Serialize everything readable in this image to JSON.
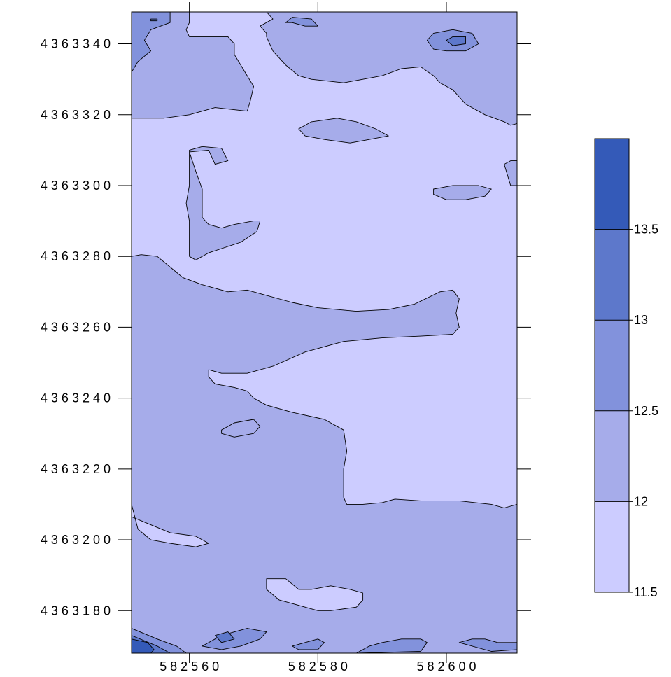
{
  "chart_data": {
    "type": "contour",
    "title": "",
    "xlabel": "",
    "ylabel": "",
    "x_ticks": [
      {
        "value": 582560,
        "label": "5 8 2 5 6 0"
      },
      {
        "value": 582580,
        "label": "5 8 2 5 8 0"
      },
      {
        "value": 582600,
        "label": "5 8 2 6 0 0"
      }
    ],
    "y_ticks": [
      {
        "value": 4363180,
        "label": "4 3 6 3 1 8 0"
      },
      {
        "value": 4363200,
        "label": "4 3 6 3 2 0 0"
      },
      {
        "value": 4363220,
        "label": "4 3 6 3 2 2 0"
      },
      {
        "value": 4363240,
        "label": "4 3 6 3 2 4 0"
      },
      {
        "value": 4363260,
        "label": "4 3 6 3 2 6 0"
      },
      {
        "value": 4363280,
        "label": "4 3 6 3 2 8 0"
      },
      {
        "value": 4363300,
        "label": "4 3 6 3 3 0 0"
      },
      {
        "value": 4363320,
        "label": "4 3 6 3 3 2 0"
      },
      {
        "value": 4363340,
        "label": "4 3 6 3 3 4 0"
      }
    ],
    "xlim": [
      582551,
      582611
    ],
    "ylim": [
      4363168,
      4363349
    ],
    "levels": [
      {
        "range": [
          11.5,
          12.0
        ],
        "color": "#ccccff"
      },
      {
        "range": [
          12.0,
          12.5
        ],
        "color": "#a6acea"
      },
      {
        "range": [
          12.5,
          13.0
        ],
        "color": "#8292dc"
      },
      {
        "range": [
          13.0,
          13.5
        ],
        "color": "#5d78cb"
      },
      {
        "range": [
          13.5,
          14.0
        ],
        "color": "#345ab8"
      }
    ],
    "legend_labels": [
      "11.5",
      "12",
      "12.5",
      "13",
      "13.5"
    ],
    "legend_position": "right",
    "regions": [
      {
        "level": 1,
        "pts": [
          [
            582551,
            4363280
          ],
          [
            582552.5,
            4363280.5
          ],
          [
            582555,
            4363280
          ],
          [
            582557,
            4363277
          ],
          [
            582559,
            4363274
          ],
          [
            582562,
            4363272
          ],
          [
            582566,
            4363270
          ],
          [
            582569,
            4363270.5
          ],
          [
            582572,
            4363269
          ],
          [
            582576,
            4363267
          ],
          [
            582580,
            4363265.5
          ],
          [
            582586,
            4363264.5
          ],
          [
            582591,
            4363265
          ],
          [
            582595,
            4363266.5
          ],
          [
            582599,
            4363270
          ],
          [
            582601,
            4363270.5
          ],
          [
            582602,
            4363268
          ],
          [
            582601.5,
            4363264
          ],
          [
            582602,
            4363260
          ],
          [
            582601,
            4363258
          ],
          [
            582596,
            4363257.5
          ],
          [
            582590,
            4363257
          ],
          [
            582584,
            4363256
          ],
          [
            582578,
            4363253
          ],
          [
            582573,
            4363249
          ],
          [
            582569,
            4363247
          ],
          [
            582565,
            4363247
          ],
          [
            582563,
            4363248
          ],
          [
            582563,
            4363246
          ],
          [
            582564,
            4363244
          ],
          [
            582567,
            4363243
          ],
          [
            582569,
            4363242
          ],
          [
            582570,
            4363240
          ],
          [
            582572,
            4363238
          ],
          [
            582576,
            4363236
          ],
          [
            582581,
            4363234
          ],
          [
            582584,
            4363231
          ],
          [
            582584.5,
            4363225
          ],
          [
            582584,
            4363220
          ],
          [
            582584,
            4363212
          ],
          [
            582584.5,
            4363210
          ],
          [
            582587,
            4363210
          ],
          [
            582590,
            4363210.5
          ],
          [
            582592,
            4363211.5
          ],
          [
            582596,
            4363211
          ],
          [
            582602,
            4363211
          ],
          [
            582607,
            4363210
          ],
          [
            582609,
            4363209
          ],
          [
            582611,
            4363210
          ],
          [
            582611,
            4363168
          ],
          [
            582551,
            4363168
          ]
        ]
      },
      {
        "level": 1,
        "pts": [
          [
            582551,
            4363349
          ],
          [
            582560,
            4363349
          ],
          [
            582560,
            4363346
          ],
          [
            582559.5,
            4363344
          ],
          [
            582560,
            4363342
          ],
          [
            582564,
            4363342
          ],
          [
            582566,
            4363342
          ],
          [
            582567,
            4363340
          ],
          [
            582567,
            4363337
          ],
          [
            582568,
            4363334
          ],
          [
            582569,
            4363331
          ],
          [
            582570,
            4363328
          ],
          [
            582569.5,
            4363324
          ],
          [
            582569,
            4363321
          ],
          [
            582564,
            4363322
          ],
          [
            582560,
            4363320
          ],
          [
            582556,
            4363319
          ],
          [
            582551,
            4363319
          ]
        ]
      },
      {
        "level": 1,
        "pts": [
          [
            582572,
            4363349
          ],
          [
            582573,
            4363347
          ],
          [
            582571,
            4363345
          ],
          [
            582572,
            4363343
          ],
          [
            582572,
            4363342
          ],
          [
            582573,
            4363338
          ],
          [
            582575,
            4363334
          ],
          [
            582577,
            4363331
          ],
          [
            582579,
            4363330
          ],
          [
            582584,
            4363329
          ],
          [
            582587,
            4363330
          ],
          [
            582590,
            4363331
          ],
          [
            582593,
            4363333
          ],
          [
            582596,
            4363333.5
          ],
          [
            582598,
            4363331
          ],
          [
            582599,
            4363329
          ],
          [
            582601,
            4363327
          ],
          [
            582603,
            4363323
          ],
          [
            582606,
            4363320
          ],
          [
            582609,
            4363318
          ],
          [
            582610,
            4363317
          ],
          [
            582611,
            4363317.5
          ],
          [
            582611,
            4363349
          ]
        ]
      },
      {
        "level": 1,
        "pts": [
          [
            582563,
            4363310
          ],
          [
            582560,
            4363309.5
          ],
          [
            582561,
            4363304
          ],
          [
            582562,
            4363299
          ],
          [
            582562,
            4363295
          ],
          [
            582562,
            4363291
          ],
          [
            582563,
            4363289
          ],
          [
            582565,
            4363288
          ],
          [
            582567,
            4363289
          ],
          [
            582570,
            4363290
          ],
          [
            582571,
            4363290
          ],
          [
            582570.5,
            4363287
          ],
          [
            582568,
            4363284
          ],
          [
            582563,
            4363281
          ],
          [
            582561,
            4363279
          ],
          [
            582560,
            4363280
          ],
          [
            582560,
            4363285
          ],
          [
            582560,
            4363290
          ],
          [
            582559.5,
            4363295
          ],
          [
            582560,
            4363300
          ],
          [
            582560,
            4363305
          ],
          [
            582560,
            4363310
          ],
          [
            582562,
            4363311
          ],
          [
            582565,
            4363310.5
          ],
          [
            582566,
            4363307
          ],
          [
            582564,
            4363306
          ]
        ]
      },
      {
        "level": 1,
        "pts": [
          [
            582577,
            4363316
          ],
          [
            582579,
            4363318
          ],
          [
            582583,
            4363319
          ],
          [
            582586,
            4363318
          ],
          [
            582589,
            4363316
          ],
          [
            582591,
            4363314
          ],
          [
            582588,
            4363313
          ],
          [
            582585,
            4363312
          ],
          [
            582581,
            4363313
          ],
          [
            582578,
            4363314
          ]
        ]
      },
      {
        "level": 1,
        "pts": [
          [
            582598,
            4363299
          ],
          [
            582601,
            4363300
          ],
          [
            582605,
            4363300
          ],
          [
            582607,
            4363299
          ],
          [
            582606,
            4363297
          ],
          [
            582603,
            4363296
          ],
          [
            582600,
            4363296
          ],
          [
            582598,
            4363297.5
          ]
        ]
      },
      {
        "level": 1,
        "pts": [
          [
            582609,
            4363306
          ],
          [
            582610,
            4363307
          ],
          [
            582611,
            4363307
          ],
          [
            582611,
            4363300
          ],
          [
            582610,
            4363300
          ],
          [
            582609.5,
            4363303
          ]
        ]
      },
      {
        "level": 1,
        "pts": [
          [
            582565,
            4363231
          ],
          [
            582567,
            4363233
          ],
          [
            582570,
            4363234
          ],
          [
            582571,
            4363232
          ],
          [
            582570,
            4363230
          ],
          [
            582567,
            4363229
          ],
          [
            582565,
            4363230
          ]
        ]
      },
      {
        "level": 0,
        "pts": [
          [
            582551,
            4363210
          ],
          [
            582552,
            4363203
          ],
          [
            582554,
            4363200
          ],
          [
            582557,
            4363199
          ],
          [
            582561,
            4363198
          ],
          [
            582563,
            4363199
          ],
          [
            582561,
            4363201
          ],
          [
            582557,
            4363202
          ],
          [
            582553,
            4363205
          ],
          [
            582551,
            4363206.5
          ]
        ]
      },
      {
        "level": 0,
        "pts": [
          [
            582572,
            4363189
          ],
          [
            582572,
            4363186
          ],
          [
            582574,
            4363183
          ],
          [
            582576,
            4363182
          ],
          [
            582578,
            4363181
          ],
          [
            582580,
            4363180
          ],
          [
            582582,
            4363180
          ],
          [
            582586,
            4363181
          ],
          [
            582587,
            4363183
          ],
          [
            582587,
            4363185
          ],
          [
            582585,
            4363186
          ],
          [
            582582,
            4363187
          ],
          [
            582579,
            4363186
          ],
          [
            582577,
            4363186
          ],
          [
            582575,
            4363189
          ]
        ]
      },
      {
        "level": 2,
        "pts": [
          [
            582551,
            4363349
          ],
          [
            582557,
            4363349
          ],
          [
            582557,
            4363346
          ],
          [
            582554,
            4363344
          ],
          [
            582553,
            4363341
          ],
          [
            582554,
            4363338
          ],
          [
            582552,
            4363335
          ],
          [
            582551,
            4363332
          ]
        ]
      },
      {
        "level": 2,
        "pts": [
          [
            582575,
            4363346
          ],
          [
            582576,
            4363346
          ],
          [
            582578,
            4363345
          ],
          [
            582580,
            4363345
          ],
          [
            582579,
            4363347
          ],
          [
            582576,
            4363347.5
          ]
        ]
      },
      {
        "level": 2,
        "pts": [
          [
            582597,
            4363341
          ],
          [
            582598,
            4363343
          ],
          [
            582601,
            4363344
          ],
          [
            582604,
            4363343
          ],
          [
            582605,
            4363340
          ],
          [
            582603,
            4363338
          ],
          [
            582600,
            4363338
          ],
          [
            582598,
            4363338.5
          ]
        ]
      },
      {
        "level": 2,
        "pts": [
          [
            582551,
            4363175
          ],
          [
            582555,
            4363172
          ],
          [
            582558,
            4363170
          ],
          [
            582559.5,
            4363168
          ],
          [
            582551,
            4363168
          ]
        ]
      },
      {
        "level": 2,
        "pts": [
          [
            582562,
            4363170
          ],
          [
            582565,
            4363173
          ],
          [
            582569,
            4363175
          ],
          [
            582572,
            4363174
          ],
          [
            582571,
            4363172
          ],
          [
            582568,
            4363170
          ],
          [
            582565,
            4363169
          ]
        ]
      },
      {
        "level": 2,
        "pts": [
          [
            582586,
            4363168
          ],
          [
            582588,
            4363170
          ],
          [
            582590,
            4363171
          ],
          [
            582593,
            4363172
          ],
          [
            582596,
            4363172
          ],
          [
            582597,
            4363171
          ],
          [
            582596,
            4363168.5
          ]
        ]
      },
      {
        "level": 2,
        "pts": [
          [
            582602,
            4363171
          ],
          [
            582604,
            4363172
          ],
          [
            582606,
            4363172
          ],
          [
            582608,
            4363171
          ],
          [
            582611,
            4363171
          ],
          [
            582611,
            4363169
          ],
          [
            582607,
            4363168.5
          ]
        ]
      },
      {
        "level": 2,
        "pts": [
          [
            582576,
            4363170
          ],
          [
            582578,
            4363171
          ],
          [
            582580,
            4363172
          ],
          [
            582581,
            4363171
          ],
          [
            582580,
            4363169
          ],
          [
            582577,
            4363169
          ]
        ]
      },
      {
        "level": 3,
        "pts": [
          [
            582551,
            4363173
          ],
          [
            582555,
            4363170
          ],
          [
            582557,
            4363168
          ],
          [
            582551,
            4363168
          ]
        ]
      },
      {
        "level": 3,
        "pts": [
          [
            582564,
            4363173
          ],
          [
            582566,
            4363174
          ],
          [
            582567,
            4363172
          ],
          [
            582565,
            4363171
          ]
        ]
      },
      {
        "level": 3,
        "pts": [
          [
            582554,
            4363347
          ],
          [
            582555,
            4363347
          ],
          [
            582555,
            4363346.5
          ],
          [
            582554,
            4363346.5
          ]
        ]
      },
      {
        "level": 3,
        "pts": [
          [
            582600,
            4363341
          ],
          [
            582601,
            4363342
          ],
          [
            582603,
            4363342
          ],
          [
            582603,
            4363340
          ],
          [
            582601,
            4363339.5
          ]
        ]
      },
      {
        "level": 4,
        "pts": [
          [
            582551,
            4363172
          ],
          [
            582553.5,
            4363171
          ],
          [
            582554.5,
            4363169
          ],
          [
            582554,
            4363168
          ],
          [
            582551,
            4363168
          ]
        ]
      }
    ]
  }
}
